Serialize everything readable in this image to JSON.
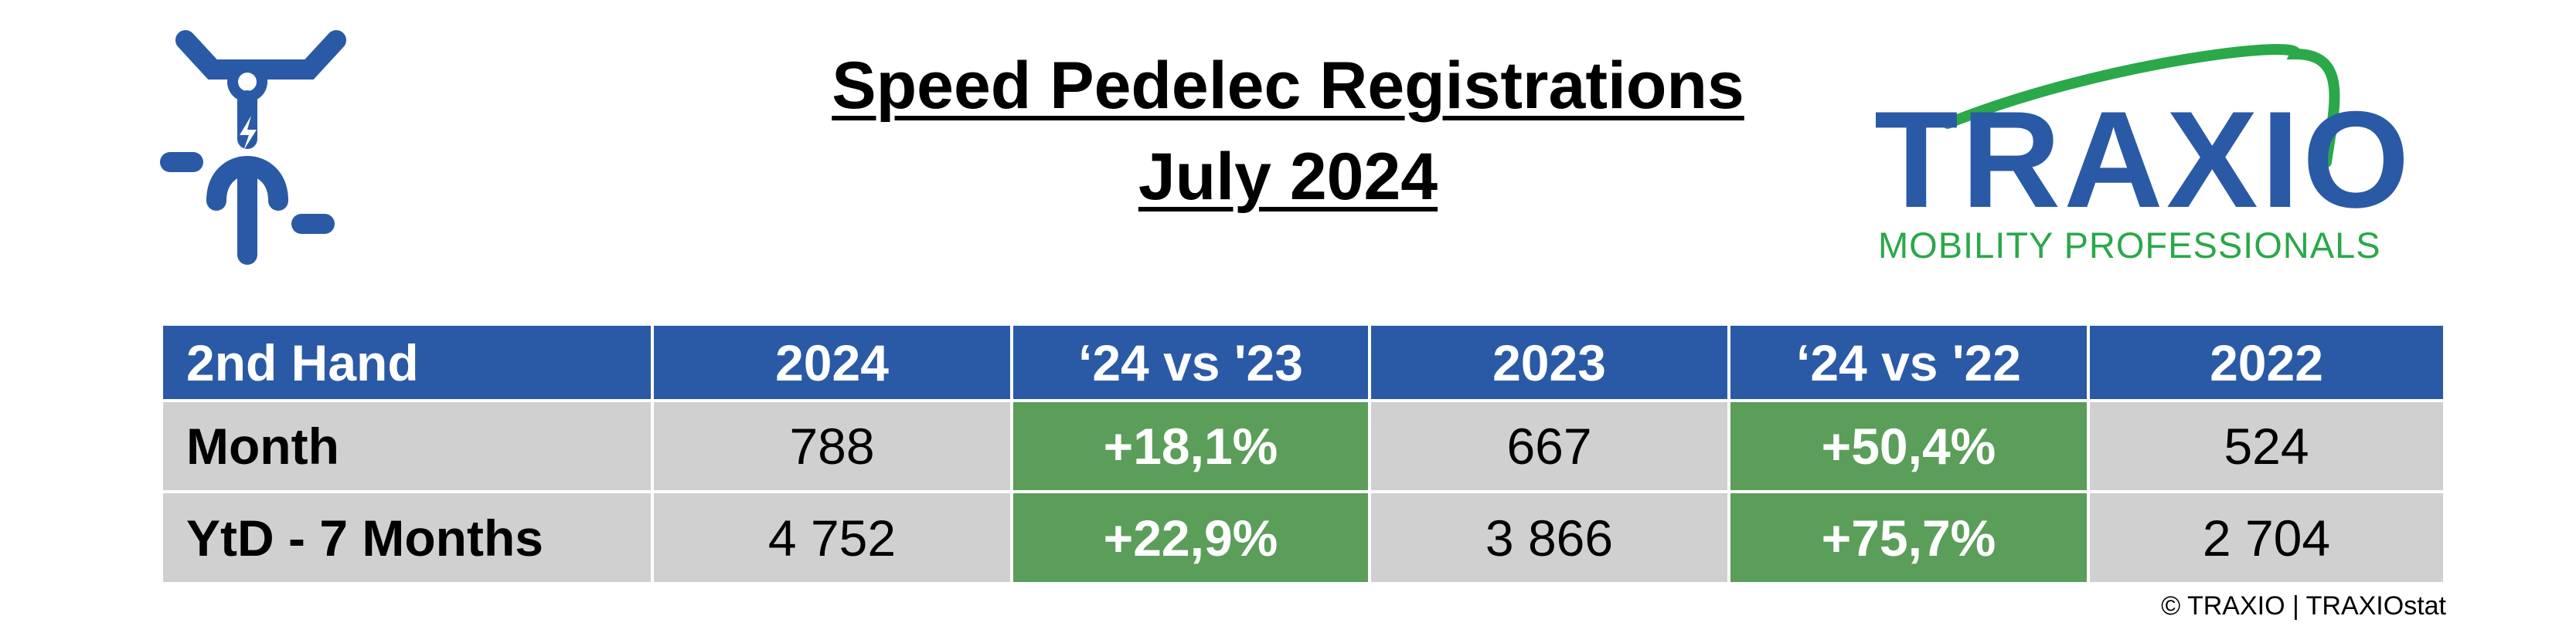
{
  "header": {
    "title": [
      "Speed Pedelec Registrations",
      "July 2024"
    ]
  },
  "logo": {
    "name": "TRAXIO",
    "tagline": "MOBILITY PROFESSIONALS"
  },
  "table": {
    "columns": [
      "2nd Hand",
      "2024",
      "‘24 vs '23",
      "2023",
      "‘24 vs '22",
      "2022"
    ],
    "rows": [
      [
        "Month",
        "788",
        "+18,1%",
        "667",
        "+50,4%",
        "524"
      ],
      [
        "YtD - 7 Months",
        "4 752",
        "+22,9%",
        "3 866",
        "+75,7%",
        "2 704"
      ]
    ]
  },
  "footer": "© TRAXIO | TRAXIOstat"
}
